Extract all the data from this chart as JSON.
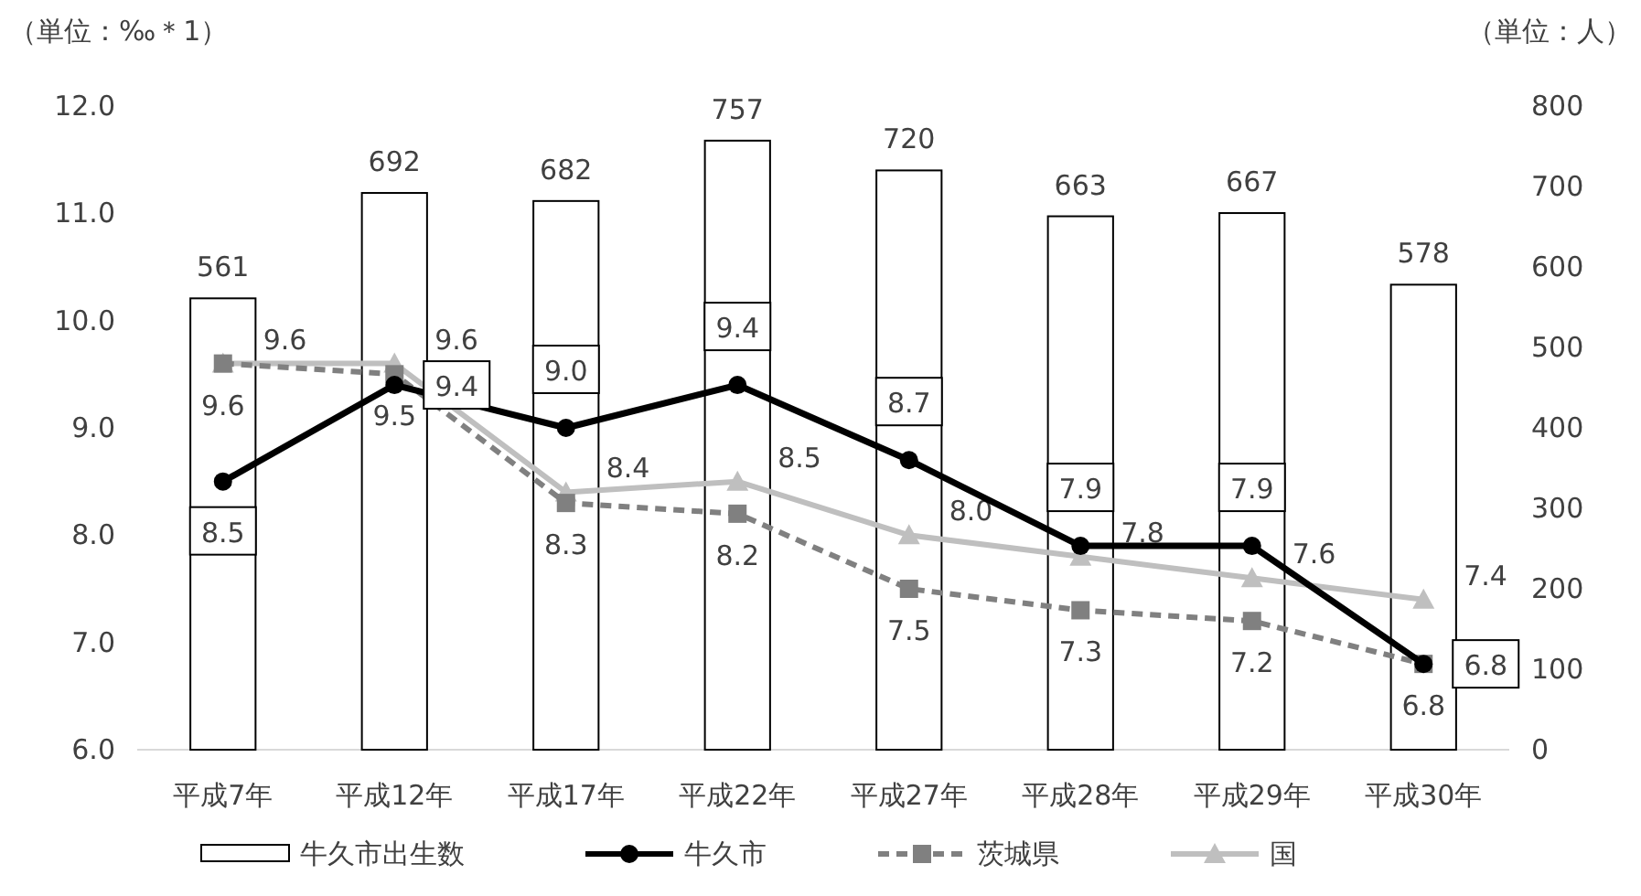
{
  "chart_data": {
    "type": "bar",
    "categories": [
      "平成7年",
      "平成12年",
      "平成17年",
      "平成22年",
      "平成27年",
      "平成28年",
      "平成29年",
      "平成30年"
    ],
    "ylabel": "（単位：‰＊1）",
    "y2label": "（単位：人）",
    "ylim": [
      6,
      12
    ],
    "yticks": [
      {
        "value": 6,
        "label": "6.0"
      },
      {
        "value": 7,
        "label": "7.0"
      },
      {
        "value": 8,
        "label": "8.0"
      },
      {
        "value": 9,
        "label": "9.0"
      },
      {
        "value": 10,
        "label": "10.0"
      },
      {
        "value": 11,
        "label": "11.0"
      },
      {
        "value": 12,
        "label": "12.0"
      }
    ],
    "y2lim": [
      0,
      800
    ],
    "y2ticks": [
      0,
      100,
      200,
      300,
      400,
      500,
      600,
      700,
      800
    ],
    "legend": "bottom",
    "grid": false,
    "series": [
      {
        "name": "牛久市出生数",
        "axis": "y2",
        "color": "#ffffff",
        "values": [
          561,
          692,
          682,
          757,
          720,
          663,
          667,
          578
        ],
        "value_labels": [
          "561",
          "692",
          "682",
          "757",
          "720",
          "663",
          "667",
          "578"
        ]
      },
      {
        "name": "牛久市",
        "type": "line",
        "color": "#000000",
        "marker": "circle",
        "line_style": "solid",
        "values": [
          8.5,
          9.4,
          9.0,
          9.4,
          8.7,
          7.9,
          7.9,
          6.8
        ],
        "value_labels": [
          "8.5",
          "9.4",
          "9.0",
          "9.4",
          "8.7",
          "7.9",
          "7.9",
          "6.8"
        ]
      },
      {
        "name": "茨城県",
        "type": "line",
        "color": "#808080",
        "marker": "square",
        "line_style": "dashed",
        "values": [
          9.6,
          9.5,
          8.3,
          8.2,
          7.5,
          7.3,
          7.2,
          6.8
        ],
        "value_labels": [
          "9.6",
          "9.5",
          "8.3",
          "8.2",
          "7.5",
          "7.3",
          "7.2",
          "6.8"
        ]
      },
      {
        "name": "国",
        "type": "line",
        "color": "#bfbfbf",
        "marker": "triangle",
        "line_style": "solid",
        "values": [
          9.6,
          9.6,
          8.4,
          8.5,
          8.0,
          7.8,
          7.6,
          7.4
        ],
        "value_labels": [
          "9.6",
          "9.6",
          "8.4",
          "8.5",
          "8.0",
          "7.8",
          "7.6",
          "7.4"
        ]
      }
    ]
  }
}
